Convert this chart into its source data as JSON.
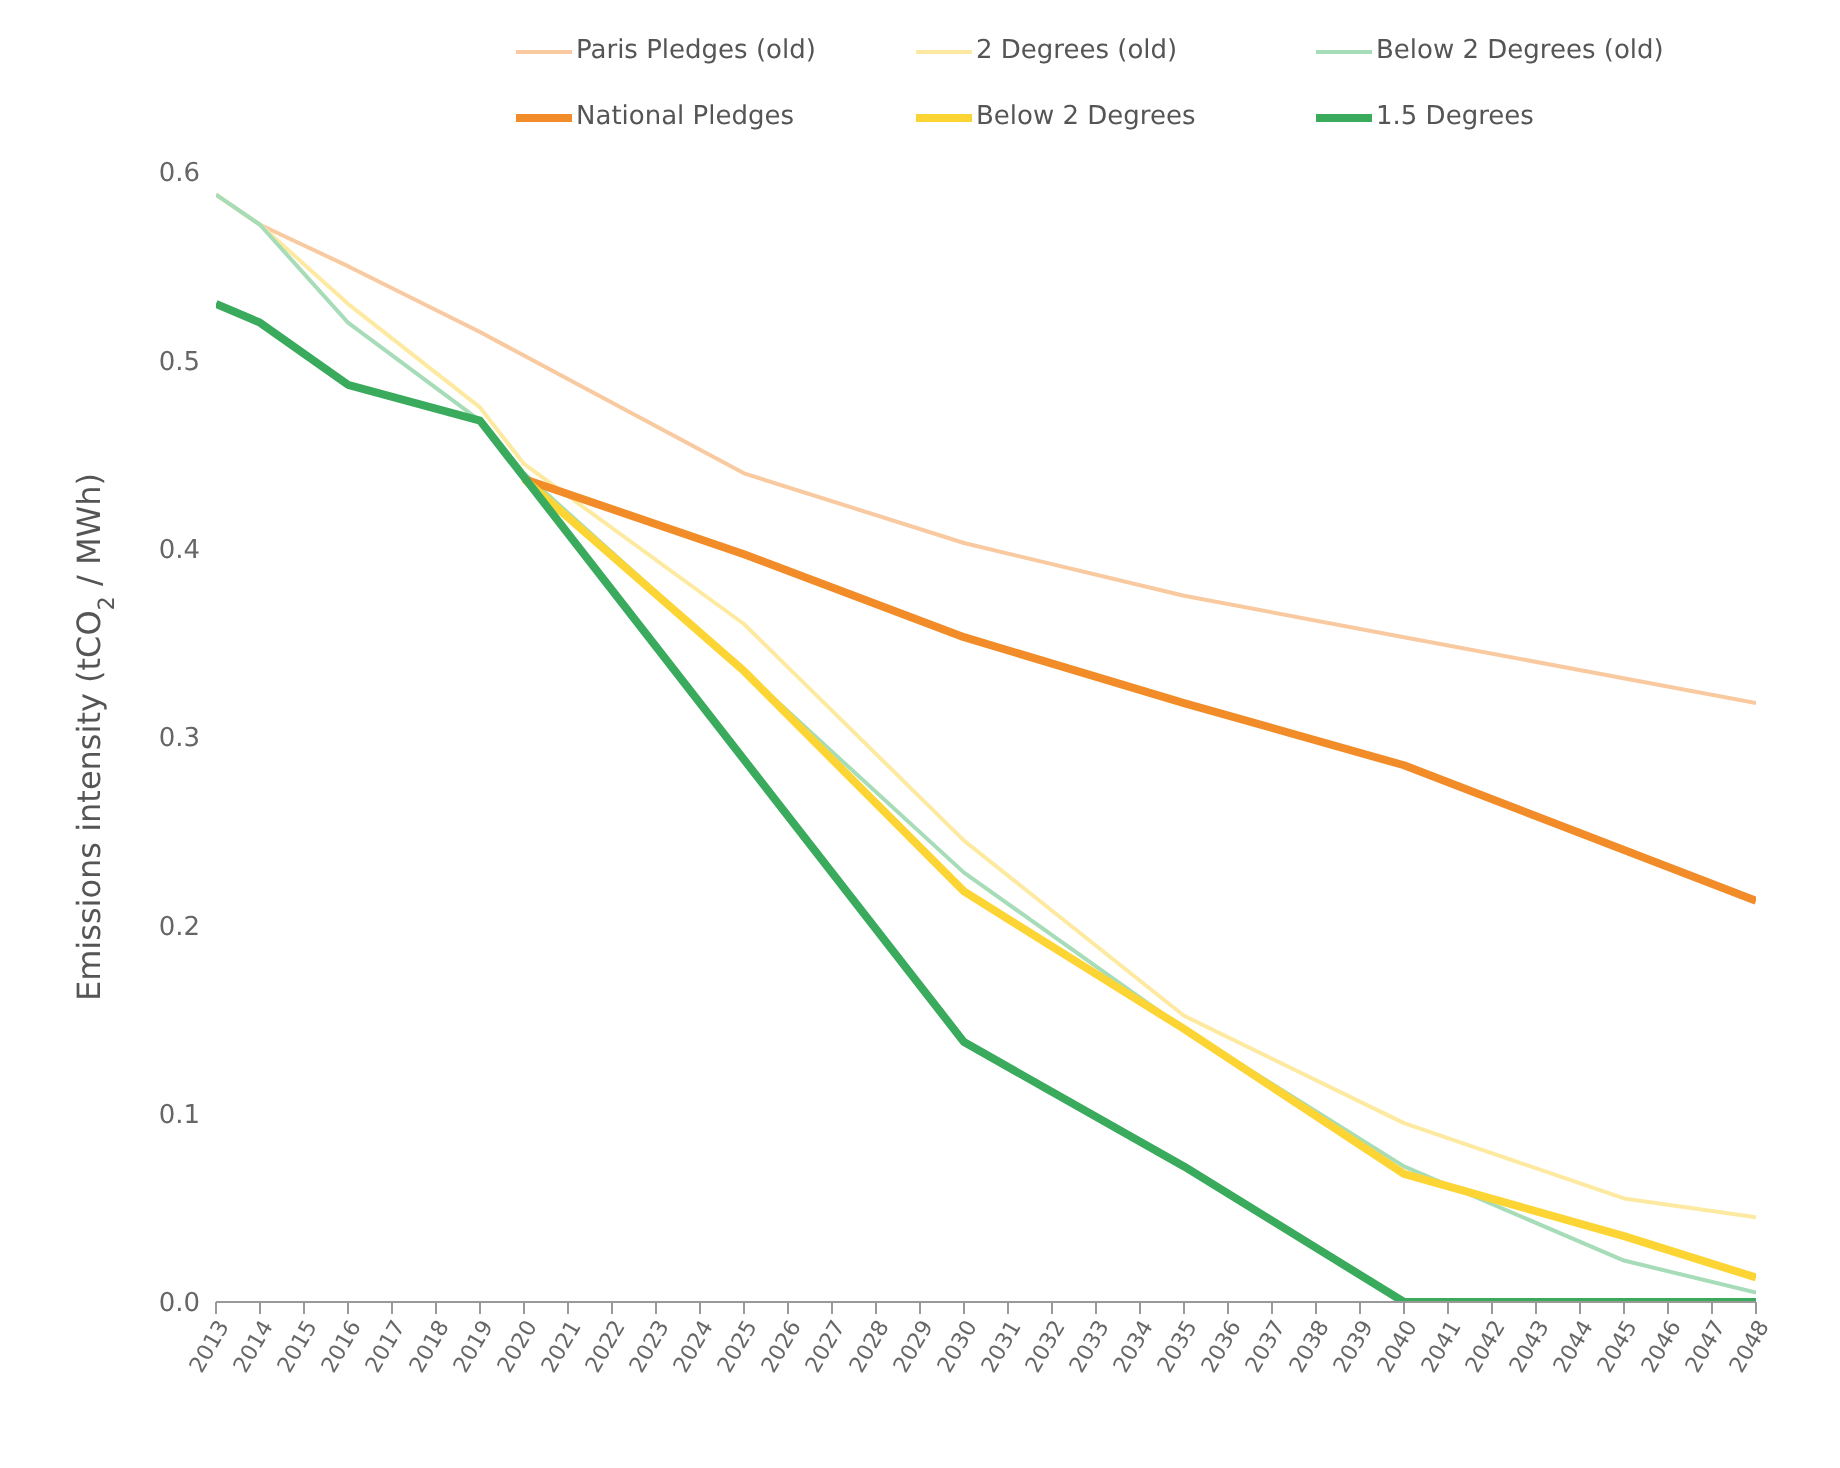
{
  "chart_data": {
    "type": "line",
    "ylabel": "Emissions intensity (tCO$_{2}$ / MWh)",
    "xlim": [
      2013,
      2048
    ],
    "xticks": [
      2013,
      2014,
      2015,
      2016,
      2017,
      2018,
      2019,
      2020,
      2021,
      2022,
      2023,
      2024,
      2025,
      2026,
      2027,
      2028,
      2029,
      2030,
      2031,
      2032,
      2033,
      2034,
      2035,
      2036,
      2037,
      2038,
      2039,
      2040,
      2041,
      2042,
      2043,
      2044,
      2045,
      2046,
      2047,
      2048
    ],
    "ylim": [
      0,
      0.6
    ],
    "yticks": [
      {
        "value": 0,
        "label": "0.0"
      },
      0.1,
      0.2,
      0.3,
      0.4,
      0.5,
      0.6
    ],
    "grid": false,
    "legend": "top",
    "marker": "none",
    "line_style": "solid",
    "series": [
      {
        "name": "Paris Pledges (old)",
        "color": "#f9c9a0",
        "x": [
          2013,
          2014,
          2016,
          2019,
          2025,
          2030,
          2035,
          2040,
          2048
        ],
        "values": [
          0.588,
          0.572,
          0.55,
          0.515,
          0.44,
          0.403,
          0.375,
          0.353,
          0.318
        ]
      },
      {
        "name": "2 Degrees (old)",
        "color": "#fdeaa0",
        "x": [
          2013,
          2014,
          2016,
          2019,
          2020,
          2025,
          2030,
          2035,
          2040,
          2045,
          2048
        ],
        "values": [
          0.588,
          0.572,
          0.53,
          0.475,
          0.445,
          0.36,
          0.245,
          0.152,
          0.095,
          0.055,
          0.045
        ]
      },
      {
        "name": "Below 2 Degrees (old)",
        "color": "#a6dcb8",
        "x": [
          2013,
          2014,
          2016,
          2019,
          2020,
          2025,
          2030,
          2035,
          2040,
          2045,
          2048
        ],
        "values": [
          0.588,
          0.572,
          0.52,
          0.468,
          0.44,
          0.335,
          0.228,
          0.145,
          0.072,
          0.022,
          0.005
        ]
      },
      {
        "name": "National Pledges",
        "color": "#f28c28",
        "x": [
          2020,
          2025,
          2030,
          2035,
          2040,
          2048
        ],
        "values": [
          0.437,
          0.397,
          0.353,
          0.318,
          0.285,
          0.213
        ]
      },
      {
        "name": "Below 2 Degrees",
        "color": "#fcd535",
        "x": [
          2020,
          2025,
          2030,
          2035,
          2040,
          2045,
          2048
        ],
        "values": [
          0.437,
          0.335,
          0.218,
          0.145,
          0.068,
          0.035,
          0.013
        ]
      },
      {
        "name": "1.5 Degrees",
        "color": "#3aaa5c",
        "x": [
          2013,
          2014,
          2016,
          2019,
          2030,
          2035,
          2040,
          2048
        ],
        "values": [
          0.53,
          0.52,
          0.487,
          0.468,
          0.138,
          0.072,
          0,
          0
        ]
      }
    ]
  }
}
